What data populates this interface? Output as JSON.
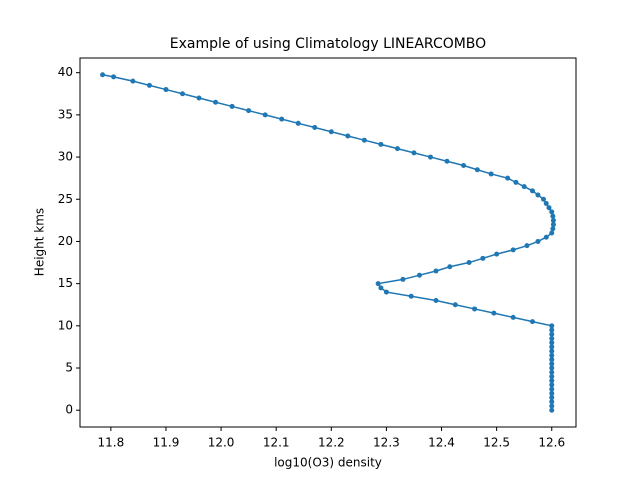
{
  "chart_data": {
    "type": "line",
    "title": "Example of using Climatology LINEARCOMBO",
    "x_label": "log10(O3) density",
    "y_label": "Height kms",
    "x": [
      12.6,
      12.6,
      12.6,
      12.6,
      12.6,
      12.6,
      12.6,
      12.6,
      12.6,
      12.6,
      12.6,
      12.6,
      12.6,
      12.6,
      12.6,
      12.6,
      12.6,
      12.6,
      12.6,
      12.6,
      12.6,
      12.565,
      12.53,
      12.495,
      12.46,
      12.425,
      12.39,
      12.345,
      12.3,
      12.29,
      12.285,
      12.33,
      12.36,
      12.39,
      12.415,
      12.45,
      12.475,
      12.5,
      12.53,
      12.555,
      12.575,
      12.59,
      12.6,
      12.602,
      12.603,
      12.603,
      12.602,
      12.6,
      12.595,
      12.59,
      12.585,
      12.575,
      12.565,
      12.55,
      12.535,
      12.52,
      12.49,
      12.465,
      12.44,
      12.41,
      12.38,
      12.35,
      12.32,
      12.29,
      12.26,
      12.23,
      12.2,
      12.17,
      12.14,
      12.11,
      12.08,
      12.05,
      12.02,
      11.99,
      11.96,
      11.93,
      11.9,
      11.87,
      11.84,
      11.805,
      11.785
    ],
    "series": [
      {
        "color": "#1f77b4",
        "values": [
          0,
          0.5,
          1,
          1.5,
          2,
          2.5,
          3,
          3.5,
          4,
          4.5,
          5,
          5.5,
          6,
          6.5,
          7,
          7.5,
          8,
          8.5,
          9,
          9.5,
          10,
          10.5,
          11,
          11.5,
          12,
          12.5,
          13,
          13.5,
          14,
          14.5,
          15,
          15.5,
          16,
          16.5,
          17,
          17.5,
          18,
          18.5,
          19,
          19.5,
          20,
          20.5,
          21,
          21.5,
          22,
          22.5,
          23,
          23.5,
          24,
          24.5,
          25,
          25.5,
          26,
          26.5,
          27,
          27.5,
          28,
          28.5,
          29,
          29.5,
          30,
          30.5,
          31,
          31.5,
          32,
          32.5,
          33,
          33.5,
          34,
          34.5,
          35,
          35.5,
          36,
          36.5,
          37,
          37.5,
          38,
          38.5,
          39,
          39.5,
          39.75
        ]
      }
    ],
    "xlim": [
      11.744,
      12.644
    ],
    "ylim": [
      -1.99,
      41.74
    ],
    "xticks": [
      11.8,
      11.9,
      {
        "value": 12,
        "label": "12.0"
      },
      12.1,
      12.2,
      12.3,
      12.4,
      12.5,
      12.6
    ],
    "yticks": [
      0,
      5,
      10,
      15,
      20,
      25,
      30,
      35,
      40
    ]
  }
}
